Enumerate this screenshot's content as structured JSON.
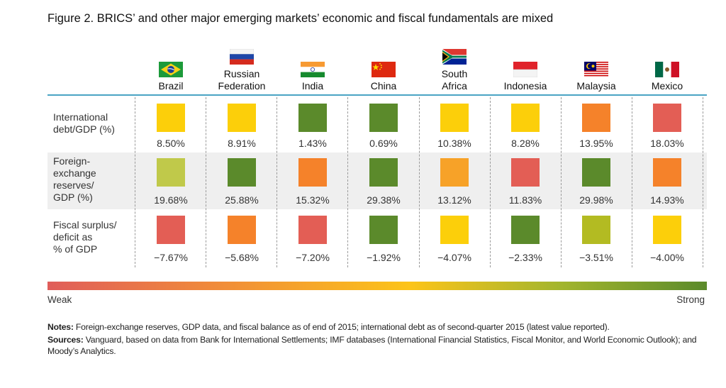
{
  "title": "Figure 2. BRICS’ and other major emerging markets’ economic and fiscal fundamentals are mixed",
  "chart_data": {
    "type": "heatmap",
    "columns": [
      "Brazil",
      "Russian Federation",
      "India",
      "China",
      "South Africa",
      "Indonesia",
      "Malaysia",
      "Mexico"
    ],
    "column_labels": [
      "Brazil",
      "Russian\nFederation",
      "India",
      "China",
      "South\nAfrica",
      "Indonesia",
      "Malaysia",
      "Mexico"
    ],
    "rows": [
      {
        "label": "International\ndebt/GDP (%)",
        "values": [
          8.5,
          8.91,
          1.43,
          0.69,
          10.38,
          8.28,
          13.95,
          18.03
        ],
        "display": [
          "8.50%",
          "8.91%",
          "1.43%",
          "0.69%",
          "10.38%",
          "8.28%",
          "13.95%",
          "18.03%"
        ],
        "colors": [
          "#fccf0a",
          "#fccf0a",
          "#5b8a2b",
          "#5b8a2b",
          "#fccf0a",
          "#fccf0a",
          "#f5822a",
          "#e35e55"
        ]
      },
      {
        "label": "Foreign-\nexchange\nreserves/\nGDP (%)",
        "values": [
          19.68,
          25.88,
          15.32,
          29.38,
          13.12,
          11.83,
          29.98,
          14.93
        ],
        "display": [
          "19.68%",
          "25.88%",
          "15.32%",
          "29.38%",
          "13.12%",
          "11.83%",
          "29.98%",
          "14.93%"
        ],
        "colors": [
          "#c0c94a",
          "#5b8a2b",
          "#f5822a",
          "#5b8a2b",
          "#f7a228",
          "#e35e55",
          "#5b8a2b",
          "#f5822a"
        ]
      },
      {
        "label": "Fiscal surplus/\ndeficit as\n% of GDP",
        "values": [
          -7.67,
          -5.68,
          -7.2,
          -1.92,
          -4.07,
          -2.33,
          -3.51,
          -4.0
        ],
        "display": [
          "−7.67%",
          "−5.68%",
          "−7.20%",
          "−1.92%",
          "−4.07%",
          "−2.33%",
          "−3.51%",
          "−4.00%"
        ],
        "colors": [
          "#e35e55",
          "#f5822a",
          "#e35e55",
          "#5b8a2b",
          "#fccf0a",
          "#5b8a2b",
          "#b3bb22",
          "#fccf0a"
        ]
      }
    ],
    "scale": {
      "min_label": "Weak",
      "max_label": "Strong",
      "colors": [
        "#e05d5a",
        "#f08a3a",
        "#fcc419",
        "#a2b52d",
        "#5b8a2b"
      ]
    }
  },
  "notes": {
    "label": "Notes:",
    "text": " Foreign-exchange reserves, GDP data, and fiscal balance as of end of 2015; international debt as of second-quarter 2015 (latest value reported)."
  },
  "sources": {
    "label": "Sources:",
    "text": " Vanguard, based on data from Bank for International Settlements; IMF databases (International Financial Statistics, Fiscal Monitor, and World Economic Outlook); and Moody’s Analytics."
  }
}
